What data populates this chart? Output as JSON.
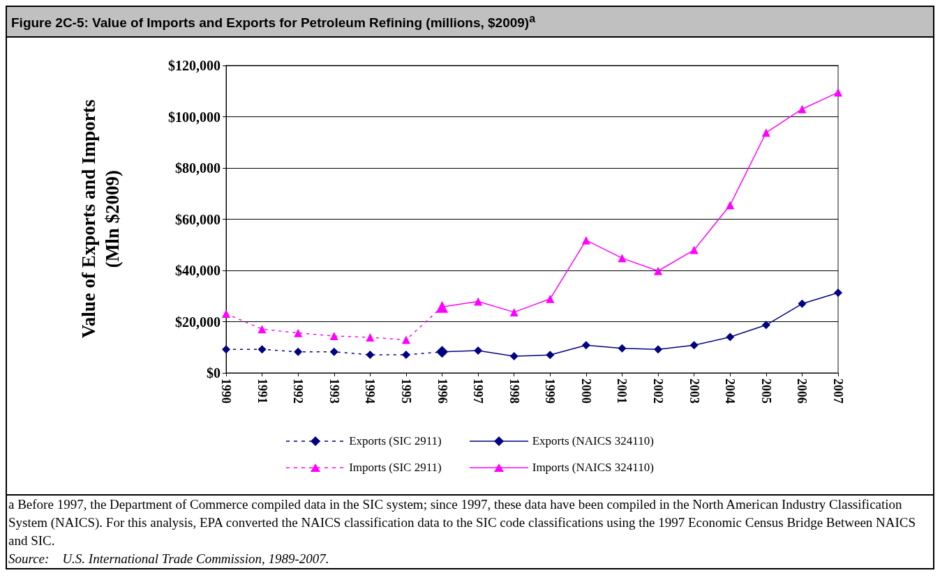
{
  "chart_data": {
    "type": "line",
    "title": "Figure 2C-5: Value of Imports and Exports for Petroleum Refining (millions, $2009)$^{a}$",
    "ylabel": "Value of Exports and Imports (Mln $2009)",
    "categories": [
      "1990",
      "1991",
      "1992",
      "1993",
      "1994",
      "1995",
      "1996",
      "1997",
      "1998",
      "1999",
      "2000",
      "2001",
      "2002",
      "2003",
      "2004",
      "2005",
      "2006",
      "2007"
    ],
    "series": [
      {
        "name": "Exports (SIC 2911)",
        "color": "#000080",
        "marker": "diamond",
        "line_style": "dashed",
        "values": [
          9200,
          9200,
          8200,
          8200,
          7100,
          7100,
          8200,
          null,
          null,
          null,
          null,
          null,
          null,
          null,
          null,
          null,
          null,
          null
        ]
      },
      {
        "name": "Exports (NAICS 324110)",
        "color": "#000080",
        "marker": "diamond",
        "line_style": "solid",
        "values": [
          null,
          null,
          null,
          null,
          null,
          null,
          8200,
          8700,
          6500,
          7000,
          10800,
          9600,
          9200,
          10800,
          14000,
          18700,
          27000,
          31300
        ]
      },
      {
        "name": "Imports (SIC 2911)",
        "color": "#ff00ff",
        "marker": "triangle",
        "line_style": "dashed",
        "values": [
          23100,
          17100,
          15600,
          14400,
          13900,
          12900,
          25800,
          null,
          null,
          null,
          null,
          null,
          null,
          null,
          null,
          null,
          null,
          null
        ]
      },
      {
        "name": "Imports (NAICS 324110)",
        "color": "#ff00ff",
        "marker": "triangle",
        "line_style": "solid",
        "values": [
          null,
          null,
          null,
          null,
          null,
          null,
          25800,
          27900,
          23700,
          28900,
          51800,
          44800,
          39800,
          48000,
          65500,
          93800,
          103000,
          109500
        ]
      }
    ],
    "ylim": [
      0,
      120000
    ],
    "yticks": [
      {
        "value": 0,
        "label": "$0"
      },
      {
        "value": 20000,
        "label": "$20,000"
      },
      {
        "value": 40000,
        "label": "$40,000"
      },
      {
        "value": 60000,
        "label": "$60,000"
      },
      {
        "value": 80000,
        "label": "$80,000"
      },
      {
        "value": 100000,
        "label": "$100,000"
      },
      {
        "value": 120000,
        "label": "$120,000"
      }
    ],
    "grid": "y",
    "legend": "bottom",
    "annotations": [
      "a Before 1997, the Department of Commerce compiled data in the SIC system; since 1997, these data have been compiled in the North American Industry Classification System (NAICS). For this analysis, EPA converted the NAICS classification data to the SIC code classifications using the 1997 Economic Census Bridge Between NAICS and SIC.",
      "Source:    U.S. International Trade Commission, 1989-2007."
    ]
  }
}
